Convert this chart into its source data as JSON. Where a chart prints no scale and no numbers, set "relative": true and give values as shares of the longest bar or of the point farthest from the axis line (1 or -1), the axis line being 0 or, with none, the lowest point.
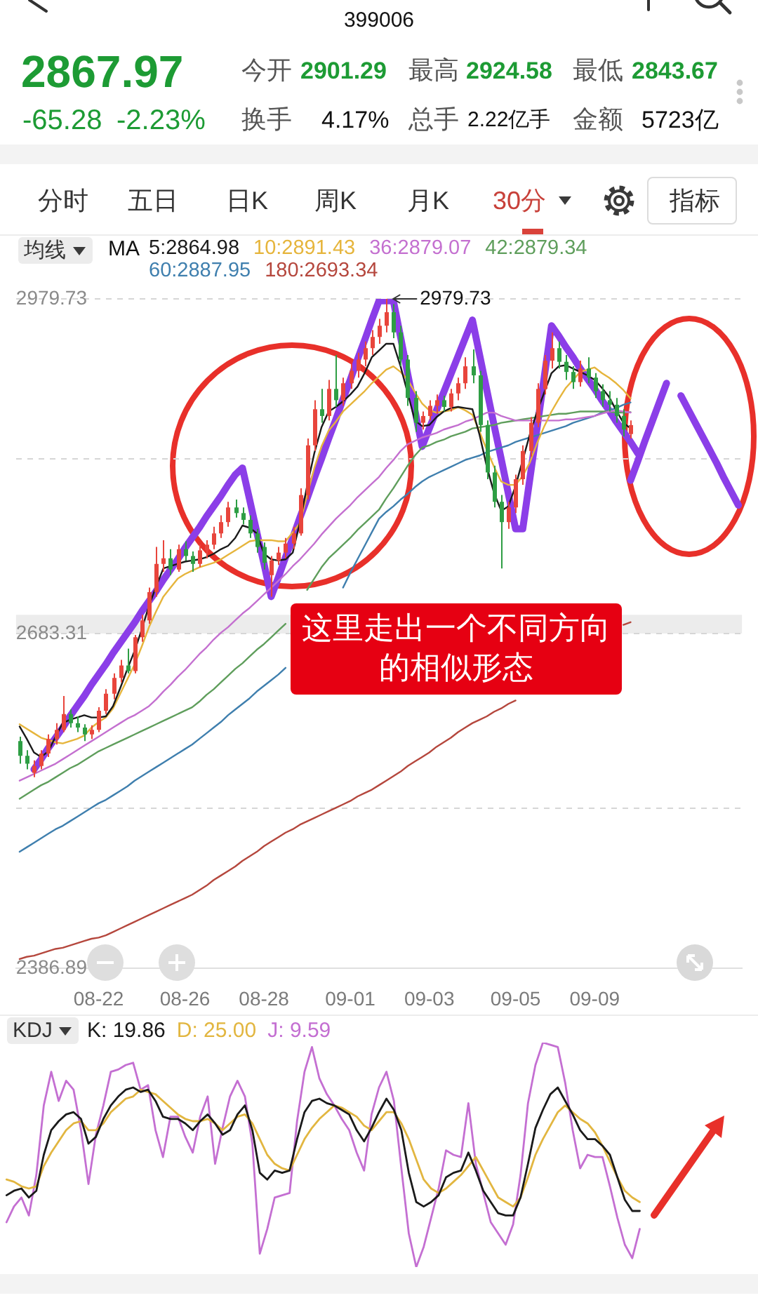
{
  "chart_data": [
    {
      "type": "other",
      "title": "399006",
      "annotations": [
        "2867.97",
        "-65.28",
        "-2.23%",
        "今开",
        "2901.29",
        "最高",
        "2924.58",
        "最低",
        "2843.67",
        "换手",
        "4.17%",
        "总手",
        "2.22亿手",
        "金额",
        "5723亿",
        "分时",
        "五日",
        "日K",
        "周K",
        "月K",
        "30分",
        "指标"
      ]
    },
    {
      "type": "candlestick",
      "title": "均线",
      "legend_title": "MA",
      "legend": "top left",
      "grid": "y",
      "categories": [
        null,
        null,
        null,
        null,
        null,
        null,
        null,
        null,
        null,
        null,
        null,
        "08-22",
        null,
        null,
        null,
        null,
        null,
        null,
        null,
        null,
        null,
        null,
        null,
        "08-26",
        null,
        null,
        null,
        null,
        null,
        null,
        null,
        null,
        null,
        null,
        "08-28",
        null,
        null,
        null,
        null,
        null,
        null,
        null,
        null,
        null,
        null,
        null,
        "09-01",
        null,
        null,
        null,
        null,
        null,
        null,
        null,
        null,
        null,
        null,
        "09-03",
        null,
        null,
        null,
        null,
        null,
        null,
        null,
        null,
        null,
        null,
        null,
        "09-05",
        null,
        null,
        null,
        null,
        null,
        null,
        null,
        null,
        null,
        null,
        "09-09",
        null,
        null,
        null,
        null,
        null,
        null,
        null,
        null,
        null,
        null,
        null,
        null,
        null,
        null,
        null,
        null,
        null,
        null,
        null,
        null
      ],
      "ylim": [
        2386.89,
        2979.73
      ],
      "yticks": [
        2979.73,
        {
          "value": 2838.04,
          "label": null
        },
        2683.31,
        {
          "value": 2528.56,
          "label": null
        },
        2386.89
      ],
      "ohlc": [
        [
          2588,
          2592,
          2568,
          2575
        ],
        [
          2575,
          2580,
          2563,
          2568
        ],
        [
          2560,
          2571,
          2556,
          2566
        ],
        [
          2566,
          2580,
          2563,
          2577
        ],
        [
          2577,
          2594,
          2574,
          2590
        ],
        [
          2590,
          2604,
          2585,
          2598
        ],
        [
          2598,
          2628,
          2596,
          2612
        ],
        [
          2612,
          2616,
          2600,
          2604
        ],
        [
          2604,
          2610,
          2596,
          2600
        ],
        [
          2600,
          2603,
          2588,
          2594
        ],
        [
          2594,
          2602,
          2590,
          2598
        ],
        [
          2598,
          2618,
          2596,
          2615
        ],
        [
          2615,
          2634,
          2612,
          2630
        ],
        [
          2630,
          2648,
          2625,
          2644
        ],
        [
          2644,
          2660,
          2640,
          2655
        ],
        [
          2655,
          2670,
          2648,
          2650
        ],
        [
          2650,
          2682,
          2648,
          2680
        ],
        [
          2680,
          2700,
          2676,
          2695
        ],
        [
          2695,
          2724,
          2692,
          2720
        ],
        [
          2720,
          2760,
          2716,
          2745
        ],
        [
          2745,
          2766,
          2738,
          2750
        ],
        [
          2750,
          2758,
          2735,
          2740
        ],
        [
          2740,
          2762,
          2738,
          2758
        ],
        [
          2758,
          2765,
          2748,
          2752
        ],
        [
          2752,
          2756,
          2738,
          2745
        ],
        [
          2745,
          2762,
          2742,
          2757
        ],
        [
          2757,
          2766,
          2750,
          2762
        ],
        [
          2762,
          2778,
          2758,
          2772
        ],
        [
          2772,
          2788,
          2768,
          2782
        ],
        [
          2782,
          2800,
          2778,
          2795
        ],
        [
          2795,
          2802,
          2786,
          2790
        ],
        [
          2790,
          2795,
          2780,
          2784
        ],
        [
          2784,
          2788,
          2768,
          2772
        ],
        [
          2772,
          2776,
          2755,
          2760
        ],
        [
          2760,
          2764,
          2740,
          2746
        ],
        [
          2735,
          2752,
          2716,
          2748
        ],
        [
          2748,
          2760,
          2744,
          2755
        ],
        [
          2755,
          2768,
          2750,
          2763
        ],
        [
          2763,
          2778,
          2758,
          2772
        ],
        [
          2772,
          2812,
          2770,
          2806
        ],
        [
          2806,
          2856,
          2802,
          2850
        ],
        [
          2850,
          2890,
          2845,
          2882
        ],
        [
          2882,
          2900,
          2870,
          2876
        ],
        [
          2876,
          2908,
          2872,
          2900
        ],
        [
          2900,
          2930,
          2884,
          2890
        ],
        [
          2890,
          2910,
          2885,
          2905
        ],
        [
          2905,
          2922,
          2900,
          2916
        ],
        [
          2916,
          2932,
          2910,
          2926
        ],
        [
          2926,
          2942,
          2920,
          2936
        ],
        [
          2936,
          2952,
          2930,
          2946
        ],
        [
          2946,
          2962,
          2940,
          2956
        ],
        [
          2956,
          2979.73,
          2950,
          2968
        ],
        [
          2968,
          2975,
          2945,
          2950
        ],
        [
          2950,
          2956,
          2920,
          2926
        ],
        [
          2926,
          2930,
          2885,
          2892
        ],
        [
          2892,
          2898,
          2862,
          2870
        ],
        [
          2870,
          2880,
          2864,
          2876
        ],
        [
          2876,
          2890,
          2872,
          2885
        ],
        [
          2885,
          2895,
          2878,
          2890
        ],
        [
          2890,
          2894,
          2880,
          2884
        ],
        [
          2884,
          2900,
          2880,
          2896
        ],
        [
          2896,
          2910,
          2890,
          2905
        ],
        [
          2905,
          2928,
          2900,
          2920
        ],
        [
          2920,
          2935,
          2905,
          2912
        ],
        [
          2912,
          2916,
          2862,
          2868
        ],
        [
          2868,
          2872,
          2820,
          2826
        ],
        [
          2826,
          2832,
          2795,
          2800
        ],
        [
          2800,
          2806,
          2741,
          2782
        ],
        [
          2782,
          2800,
          2776,
          2795
        ],
        [
          2795,
          2824,
          2790,
          2820
        ],
        [
          2820,
          2850,
          2815,
          2845
        ],
        [
          2845,
          2875,
          2840,
          2870
        ],
        [
          2870,
          2905,
          2866,
          2900
        ],
        [
          2900,
          2930,
          2895,
          2925
        ],
        [
          2925,
          2950,
          2918,
          2936
        ],
        [
          2936,
          2942,
          2918,
          2924
        ],
        [
          2924,
          2930,
          2908,
          2915
        ],
        [
          2915,
          2920,
          2900,
          2906
        ],
        [
          2906,
          2925,
          2902,
          2918
        ],
        [
          2918,
          2928,
          2905,
          2910
        ],
        [
          2910,
          2914,
          2892,
          2898
        ],
        [
          2898,
          2904,
          2884,
          2890
        ],
        [
          2890,
          2898,
          2880,
          2886
        ],
        [
          2886,
          2892,
          2870,
          2876
        ],
        [
          2876,
          2882,
          2858,
          2864
        ],
        [
          2860,
          2872,
          2856,
          2867.97
        ],
        null,
        null,
        null,
        null,
        null,
        null,
        null,
        null,
        null,
        null,
        null,
        null,
        null,
        null,
        null
      ],
      "colors": [
        "#2e9e44",
        "#2e9e44",
        "#e8453c",
        "#e8453c",
        "#e8453c",
        "#e8453c",
        "#e8453c",
        "#2e9e44",
        "#2e9e44",
        "#2e9e44",
        "#e8453c",
        "#e8453c",
        "#e8453c",
        "#e8453c",
        "#e8453c",
        "#2e9e44",
        "#e8453c",
        "#e8453c",
        "#e8453c",
        "#e8453c",
        "#e8453c",
        "#2e9e44",
        "#e8453c",
        "#2e9e44",
        "#2e9e44",
        "#e8453c",
        "#e8453c",
        "#e8453c",
        "#e8453c",
        "#e8453c",
        "#2e9e44",
        "#2e9e44",
        "#2e9e44",
        "#2e9e44",
        "#2e9e44",
        "#e8453c",
        "#e8453c",
        "#e8453c",
        "#e8453c",
        "#e8453c",
        "#e8453c",
        "#e8453c",
        "#2e9e44",
        "#e8453c",
        "#2e9e44",
        "#e8453c",
        "#e8453c",
        "#e8453c",
        "#e8453c",
        "#e8453c",
        "#e8453c",
        "#e8453c",
        "#2e9e44",
        "#2e9e44",
        "#2e9e44",
        "#2e9e44",
        "#e8453c",
        "#e8453c",
        "#e8453c",
        "#2e9e44",
        "#e8453c",
        "#e8453c",
        "#e8453c",
        "#2e9e44",
        "#2e9e44",
        "#2e9e44",
        "#2e9e44",
        "#2e9e44",
        "#e8453c",
        "#e8453c",
        "#e8453c",
        "#e8453c",
        "#e8453c",
        "#e8453c",
        "#e8453c",
        "#2e9e44",
        "#2e9e44",
        "#2e9e44",
        "#e8453c",
        "#2e9e44",
        "#2e9e44",
        "#2e9e44",
        "#2e9e44",
        "#2e9e44",
        "#2e9e44",
        "#e8453c",
        null,
        null,
        null,
        null,
        null,
        null,
        null,
        null,
        null,
        null,
        null,
        null,
        null,
        null,
        null
      ],
      "series": [
        {
          "name": "5:2864.98",
          "type": "line",
          "color": "#1a1a1a",
          "values": [
            2601,
            2590,
            2578,
            2574,
            2579,
            2592,
            2604,
            2607,
            2609,
            2611,
            2609,
            2609,
            2610,
            2619,
            2635,
            2652,
            2668,
            2687,
            2708,
            2725,
            2741,
            2743,
            2745,
            2747,
            2748,
            2749,
            2751,
            2754,
            2758,
            2761,
            2768,
            2779,
            2777,
            2772,
            2754,
            2749,
            2748,
            2749,
            2755,
            2782,
            2814,
            2843,
            2866,
            2880,
            2884,
            2889,
            2895,
            2902,
            2914,
            2928,
            2934,
            2940,
            2940,
            2920,
            2896,
            2872,
            2867,
            2868,
            2875,
            2880,
            2883,
            2884,
            2883,
            2882,
            2859,
            2831,
            2808,
            2792,
            2796,
            2814,
            2837,
            2860,
            2880,
            2897,
            2914,
            2920,
            2921,
            2918,
            2915,
            2912,
            2908,
            2901,
            2893,
            2881,
            2870,
            2864.98,
            null,
            null,
            null,
            null,
            null,
            null,
            null,
            null,
            null,
            null,
            null,
            null,
            null,
            null,
            null
          ]
        },
        {
          "name": "10:2891.43",
          "type": "line",
          "color": "#e6b53c",
          "values": [
            2603,
            2599,
            2595,
            2591,
            2589,
            2587,
            2586,
            2588,
            2590,
            2593,
            2600,
            2605,
            2609,
            2617,
            2630,
            2643,
            2656,
            2672,
            2689,
            2703,
            2716,
            2724,
            2732,
            2736,
            2739,
            2742,
            2744,
            2746,
            2749,
            2753,
            2757,
            2761,
            2765,
            2766,
            2766,
            2766,
            2765,
            2765,
            2773,
            2781,
            2806,
            2830,
            2849,
            2863,
            2871,
            2880,
            2886,
            2892,
            2898,
            2905,
            2911,
            2917,
            2920,
            2915,
            2908,
            2897,
            2887,
            2881,
            2879,
            2880,
            2881,
            2884,
            2881,
            2877,
            2862,
            2846,
            2831,
            2818,
            2815,
            2815,
            2823,
            2835,
            2852,
            2867,
            2880,
            2891,
            2901,
            2908,
            2915,
            2917,
            2919,
            2914,
            2910,
            2905,
            2899,
            2891.43,
            null,
            null,
            null,
            null,
            null,
            null,
            null,
            null,
            null,
            null,
            null,
            null,
            null,
            null,
            null
          ]
        },
        {
          "name": "36:2879.07",
          "type": "line",
          "color": "#c470d0",
          "values": [
            2553,
            2556,
            2559,
            2562,
            2565,
            2568,
            2572,
            2576,
            2580,
            2584,
            2588,
            2592,
            2596,
            2600,
            2604,
            2608,
            2611,
            2615,
            2619,
            2625,
            2632,
            2638,
            2645,
            2651,
            2658,
            2665,
            2671,
            2678,
            2684,
            2689,
            2695,
            2701,
            2706,
            2712,
            2718,
            2724,
            2730,
            2736,
            2743,
            2749,
            2756,
            2763,
            2771,
            2778,
            2785,
            2791,
            2797,
            2804,
            2810,
            2816,
            2822,
            2830,
            2837,
            2845,
            2851,
            2854,
            2857,
            2859,
            2861,
            2864,
            2866,
            2868,
            2871,
            2873,
            2876,
            2879,
            2879,
            2876,
            2874,
            2872,
            2872,
            2872,
            2872,
            2872,
            2872,
            2872,
            2873,
            2873,
            2874,
            2875,
            2876,
            2878,
            2880,
            2881,
            2880,
            2879.07,
            null,
            null,
            null,
            null,
            null,
            null,
            null,
            null,
            null,
            null,
            null,
            null,
            null,
            null,
            null
          ]
        },
        {
          "name": "42:2879.34",
          "type": "line",
          "color": "#5f9e5c",
          "values": [
            2537,
            2541,
            2545,
            2549,
            2552,
            2556,
            2560,
            2564,
            2567,
            2571,
            2575,
            2579,
            2582,
            2585,
            2588,
            2591,
            2594,
            2597,
            2600,
            2603,
            2606,
            2609,
            2612,
            2615,
            2618,
            2623,
            2629,
            2634,
            2640,
            2646,
            2652,
            2657,
            2663,
            2669,
            2674,
            2680,
            2686,
            2692,
            null,
            null,
            2722,
            2732,
            2742,
            2750,
            2756,
            2762,
            2768,
            2775,
            2781,
            2787,
            2793,
            2803,
            2812,
            2822,
            2832,
            2841,
            2848,
            2850,
            2853,
            2855,
            2858,
            2860,
            2862,
            2865,
            2866,
            2867,
            2868,
            2870,
            2871,
            2872,
            2873,
            2874,
            2875,
            2876,
            2877,
            2878,
            2878,
            2879,
            2880,
            2880,
            2880,
            2880,
            2880,
            2879,
            2879,
            2879.34,
            null,
            null,
            null,
            null,
            null,
            null,
            null,
            null,
            null,
            null,
            null,
            null,
            null,
            null,
            null
          ]
        },
        {
          "name": "60:2887.95",
          "type": "line",
          "color": "#3f7fae",
          "values": [
            2490,
            2494,
            2498,
            2502,
            2506,
            2510,
            2513,
            2517,
            2521,
            2525,
            2529,
            2533,
            2536,
            2540,
            2544,
            2548,
            2553,
            2557,
            2561,
            2565,
            2569,
            2573,
            2577,
            2581,
            2585,
            2590,
            2595,
            2600,
            2605,
            2611,
            2616,
            2621,
            2626,
            2632,
            2637,
            2642,
            2647,
            2653,
            null,
            null,
            null,
            null,
            null,
            null,
            null,
            2724,
            2737,
            2749,
            2761,
            2773,
            2785,
            2791,
            2796,
            2802,
            2807,
            2813,
            2818,
            2822,
            2825,
            2828,
            2831,
            2834,
            2837,
            2839,
            2841,
            2844,
            2846,
            2848,
            2850,
            2853,
            2855,
            2857,
            2859,
            2861,
            2863,
            2865,
            2867,
            2870,
            2872,
            2874,
            2876,
            2879,
            2881,
            2883,
            2886,
            2887.95,
            null,
            null,
            null,
            null,
            null,
            null,
            null,
            null,
            null,
            null,
            null,
            null,
            null,
            null,
            null
          ]
        },
        {
          "name": "180:2693.34",
          "type": "line",
          "color": "#b5473d",
          "values": [
            2395,
            2397,
            2398,
            2400,
            2402,
            2404,
            2405,
            2407,
            2409,
            2411,
            2413,
            2414,
            2416,
            2419,
            2422,
            2425,
            2428,
            2431,
            2434,
            2437,
            2440,
            2443,
            2446,
            2449,
            2452,
            2456,
            2460,
            2465,
            2469,
            2473,
            2477,
            2482,
            2486,
            2490,
            2495,
            2499,
            2503,
            2507,
            2510,
            2514,
            2517,
            2520,
            2523,
            2526,
            2529,
            2532,
            2535,
            2539,
            2542,
            2545,
            2549,
            2553,
            2557,
            2561,
            2566,
            2570,
            2574,
            2578,
            2583,
            2587,
            2591,
            2596,
            2600,
            2604,
            2607,
            2610,
            2614,
            2617,
            2621,
            2624,
            null,
            null,
            null,
            null,
            null,
            null,
            null,
            null,
            null,
            null,
            null,
            null,
            null,
            null,
            2691,
            2693.34,
            null,
            null,
            null,
            null,
            null,
            null,
            null,
            null,
            null,
            null,
            null,
            null,
            null,
            null,
            null
          ]
        },
        {
          "type": "line",
          "color": "#8b3ee8",
          "values": [
            null,
            null,
            2563,
            2572,
            2582,
            2591,
            2600,
            2610,
            2619,
            2628,
            2638,
            2647,
            2656,
            2666,
            2675,
            2684,
            2693,
            2703,
            2712,
            2721,
            2731,
            2740,
            2749,
            2759,
            2768,
            2777,
            2787,
            2796,
            2805,
            2815,
            2824,
            2830,
            2802,
            2773,
            2745,
            2716,
            2733,
            2751,
            2768,
            2786,
            2803,
            2821,
            2838,
            2856,
            2873,
            2891,
            2908,
            2926,
            2943,
            2961,
            2978,
            2978,
            2978,
            2946,
            2913,
            2881,
            2849,
            2865,
            2881,
            2897,
            2913,
            2929,
            2945,
            2961,
            2930,
            2899,
            2868,
            2838,
            2807,
            2776,
            2776,
            2821,
            2866,
            2911,
            2956,
            2947,
            2937,
            2928,
            2918,
            2909,
            2900,
            2890,
            2881,
            2871,
            2862,
            2853,
            2843,
            null,
            null,
            null,
            null,
            null,
            null,
            null,
            null,
            null,
            null,
            null,
            null,
            null,
            null
          ]
        },
        {
          "type": "line",
          "color": "#8b3ee8",
          "values": [
            null,
            null,
            null,
            null,
            null,
            null,
            null,
            null,
            null,
            null,
            null,
            null,
            null,
            null,
            null,
            null,
            null,
            null,
            null,
            null,
            null,
            null,
            null,
            null,
            null,
            null,
            null,
            null,
            null,
            null,
            null,
            null,
            null,
            null,
            null,
            null,
            null,
            null,
            null,
            null,
            null,
            null,
            null,
            null,
            null,
            null,
            null,
            null,
            null,
            null,
            null,
            null,
            null,
            null,
            null,
            null,
            null,
            null,
            null,
            null,
            null,
            null,
            null,
            null,
            null,
            null,
            null,
            null,
            null,
            null,
            null,
            null,
            null,
            null,
            null,
            null,
            null,
            null,
            null,
            null,
            null,
            null,
            null,
            null,
            null,
            2819,
            2836,
            2854,
            2871,
            2888,
            2905,
            null,
            2894,
            2882,
            2870,
            2858,
            2846,
            2834,
            2821,
            2809,
            2797
          ]
        }
      ],
      "bands": [
        {
          "axis": "y",
          "from": 2683.31,
          "to": 2700,
          "color": "#ececec"
        }
      ],
      "annotations": [
        "2979.73",
        "这里走出一个不同方向的相似形态"
      ]
    },
    {
      "type": "line",
      "title": "KDJ",
      "legend": "top left",
      "relative": true,
      "tick_labels": false,
      "categories": [
        null,
        null,
        null,
        null,
        null,
        null,
        null,
        null,
        null,
        null,
        null,
        null,
        null,
        null,
        null,
        null,
        null,
        null,
        null,
        null,
        null,
        null,
        null,
        null,
        null,
        null,
        null,
        null,
        null,
        null,
        null,
        null,
        null,
        null,
        null,
        null,
        null,
        null,
        null,
        null,
        null,
        null,
        null,
        null,
        null,
        null,
        null,
        null,
        null,
        null,
        null,
        null,
        null,
        null,
        null,
        null,
        null,
        null,
        null,
        null,
        null,
        null,
        null,
        null,
        null,
        null,
        null,
        null,
        null,
        null,
        null,
        null,
        null,
        null,
        null,
        null,
        null,
        null,
        null,
        null,
        null,
        null,
        null,
        null,
        null,
        null,
        null,
        null,
        null,
        null,
        null,
        null,
        null,
        null,
        null,
        null,
        null,
        null,
        null,
        null,
        null
      ],
      "series": [
        {
          "name": "K: 19.86",
          "color": "#1a1a1a",
          "values": [
            0.32,
            0.34,
            0.35,
            0.31,
            0.34,
            0.5,
            0.61,
            0.65,
            0.68,
            0.69,
            0.66,
            0.55,
            0.58,
            0.66,
            0.72,
            0.76,
            0.79,
            0.8,
            0.78,
            0.79,
            0.74,
            0.67,
            0.66,
            0.66,
            0.64,
            0.61,
            0.65,
            0.68,
            0.64,
            0.59,
            0.61,
            0.68,
            0.72,
            0.61,
            0.42,
            0.39,
            0.43,
            0.42,
            0.43,
            0.57,
            0.69,
            0.74,
            0.75,
            0.73,
            0.72,
            0.7,
            0.68,
            0.61,
            0.56,
            0.62,
            0.69,
            0.75,
            0.7,
            0.61,
            0.42,
            0.29,
            0.27,
            0.29,
            0.32,
            0.4,
            0.42,
            0.43,
            0.51,
            0.43,
            0.34,
            0.29,
            0.24,
            0.23,
            0.23,
            0.31,
            0.46,
            0.62,
            0.7,
            0.77,
            0.8,
            0.74,
            0.68,
            0.61,
            0.57,
            0.57,
            0.54,
            0.5,
            0.4,
            0.3,
            0.25,
            0.25,
            null,
            null,
            null,
            null,
            null,
            null,
            null,
            null,
            null,
            null,
            null,
            null,
            null,
            null,
            null
          ]
        },
        {
          "name": "D: 25.00",
          "color": "#e2b640",
          "values": [
            0.39,
            0.38,
            0.36,
            0.35,
            0.36,
            0.45,
            0.51,
            0.56,
            0.61,
            0.64,
            0.65,
            0.61,
            0.61,
            0.64,
            0.69,
            0.72,
            0.75,
            0.76,
            0.79,
            0.78,
            0.77,
            0.74,
            0.71,
            0.68,
            0.66,
            0.65,
            0.65,
            0.66,
            0.64,
            0.61,
            0.64,
            0.67,
            0.68,
            0.64,
            0.57,
            0.5,
            0.46,
            0.44,
            0.43,
            0.5,
            0.57,
            0.62,
            0.66,
            0.69,
            0.72,
            0.71,
            0.69,
            0.67,
            0.63,
            0.61,
            0.65,
            0.69,
            0.69,
            0.64,
            0.57,
            0.48,
            0.39,
            0.35,
            0.33,
            0.35,
            0.38,
            0.41,
            0.45,
            0.49,
            0.43,
            0.37,
            0.31,
            0.29,
            0.27,
            0.31,
            0.4,
            0.5,
            0.57,
            0.63,
            0.69,
            0.72,
            0.69,
            0.66,
            0.64,
            0.6,
            0.54,
            0.47,
            0.4,
            0.34,
            0.31,
            0.29,
            null,
            null,
            null,
            null,
            null,
            null,
            null,
            null,
            null,
            null,
            null,
            null,
            null,
            null,
            null
          ]
        },
        {
          "name": "J: 9.59",
          "color": "#c46fd2",
          "values": [
            0.2,
            0.27,
            0.31,
            0.23,
            0.41,
            0.72,
            0.87,
            0.74,
            0.83,
            0.79,
            0.61,
            0.37,
            0.59,
            0.72,
            0.87,
            0.88,
            0.9,
            0.91,
            0.79,
            0.81,
            0.61,
            0.49,
            0.67,
            0.67,
            0.58,
            0.51,
            0.67,
            0.76,
            0.46,
            0.62,
            0.76,
            0.83,
            0.76,
            0.55,
            0.06,
            0.17,
            0.31,
            0.32,
            0.33,
            0.65,
            0.87,
            0.98,
            0.84,
            0.77,
            0.72,
            0.66,
            0.61,
            0.51,
            0.43,
            0.68,
            0.8,
            0.87,
            0.74,
            0.44,
            0.15,
            0,
            0.09,
            0.22,
            0.35,
            0.52,
            0.5,
            0.49,
            0.73,
            0.46,
            0.33,
            0.2,
            0.15,
            0.1,
            0.19,
            0.41,
            0.73,
            0.9,
            1,
            0.99,
            0.98,
            0.82,
            0.61,
            0.44,
            0.5,
            0.49,
            0.49,
            0.36,
            0.22,
            0.1,
            0.04,
            0.17,
            null,
            null,
            null,
            null,
            null,
            null,
            null,
            null,
            null,
            null,
            null,
            null,
            null,
            null,
            null
          ]
        }
      ]
    }
  ]
}
